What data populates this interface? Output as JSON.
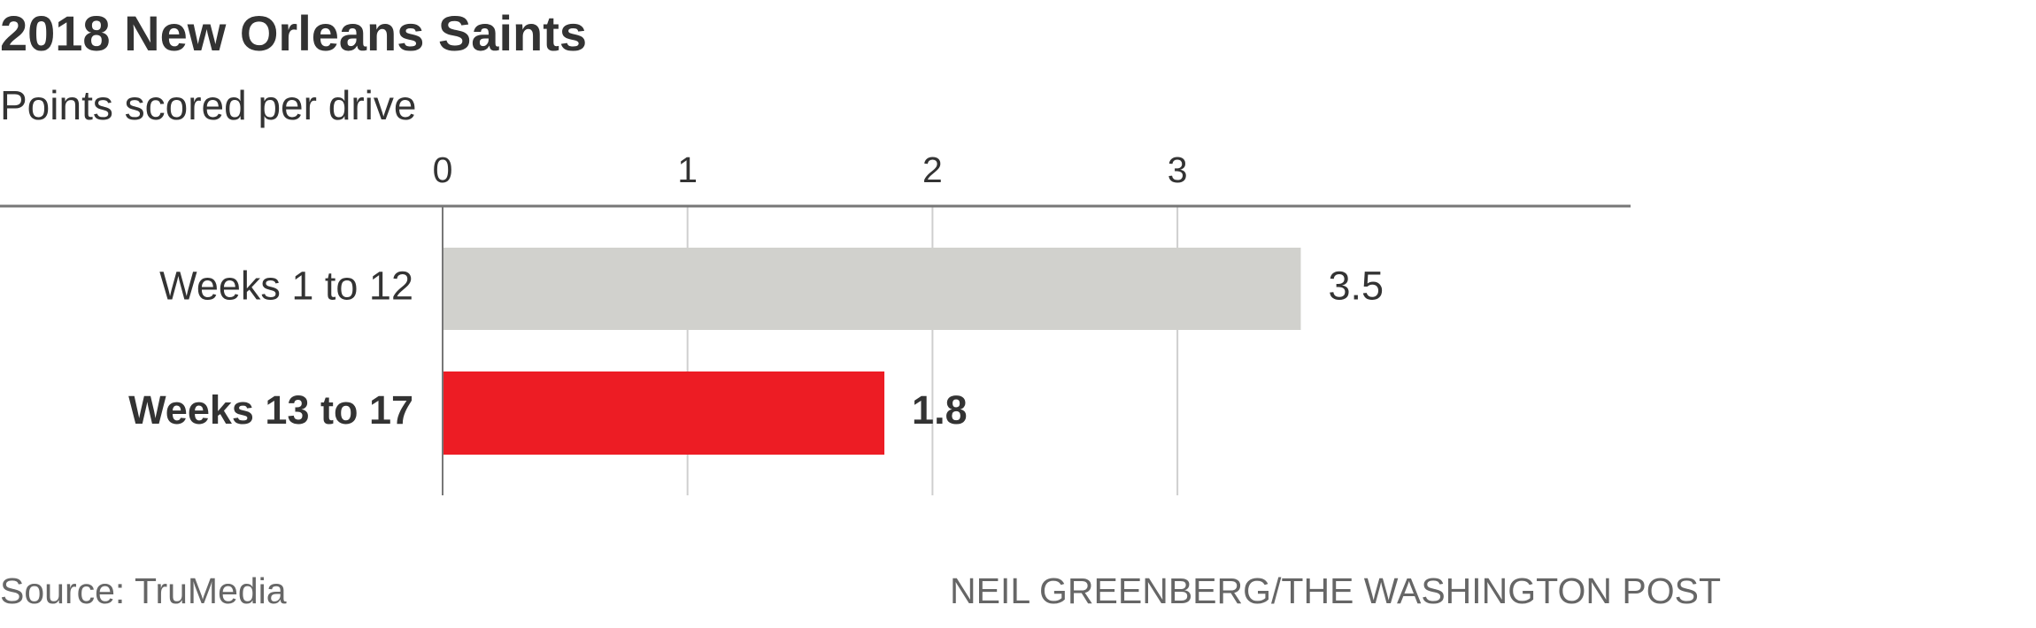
{
  "chart_data": {
    "type": "hbar",
    "title": "2018 New Orleans Saints",
    "subtitle": "Points scored per drive",
    "categories": [
      "Weeks 1 to 12",
      "Weeks 13 to 17"
    ],
    "values": [
      3.5,
      1.8
    ],
    "colors": [
      "#d1d1cd",
      "#ed1c24"
    ],
    "emphasis": [
      false,
      true
    ],
    "xlim": [
      0,
      4.85
    ],
    "xticks": [
      0,
      1,
      2,
      3
    ],
    "grid": true,
    "source": "Source: TruMedia",
    "credit": "NEIL GREENBERG/THE WASHINGTON POST"
  }
}
